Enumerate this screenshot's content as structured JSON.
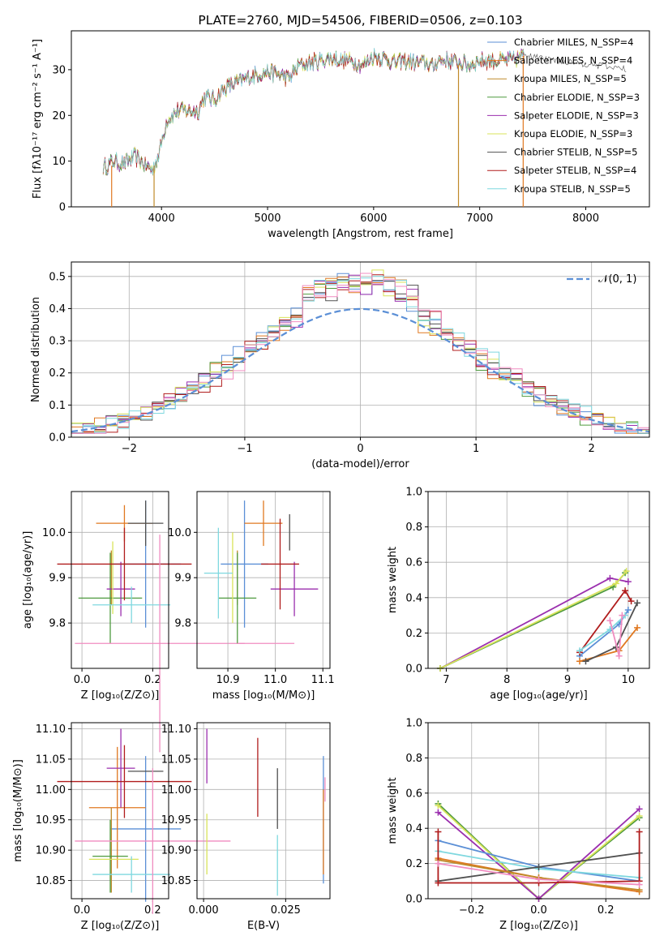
{
  "colors": {
    "blue": "#5b8fd6",
    "orange": "#e07820",
    "bronze": "#c08a2a",
    "green": "#4f9a3f",
    "purple": "#9b2fae",
    "yellow": "#d9e35a",
    "gray": "#505050",
    "red": "#b01c1c",
    "cyan": "#7fd8df",
    "pink": "#f08cc0",
    "lime": "#8cc63f",
    "normal_curve": "#5b8fd6"
  },
  "chart_data": [
    {
      "id": "spectrum",
      "type": "line",
      "title": "PLATE=2760, MJD=54506, FIBERID=0506, z=0.103",
      "xlabel": "wavelength [Angstrom, rest frame]",
      "ylabel": "Flux [fλ10⁻¹⁷ erg cm⁻² s⁻¹ A⁻¹]",
      "xlim": [
        3150,
        8600
      ],
      "ylim": [
        0,
        38.5
      ],
      "xticks": [
        "4000",
        "5000",
        "6000",
        "7000",
        "8000"
      ],
      "yticks": [
        "0",
        "10",
        "20",
        "30"
      ],
      "legend_position": "top-right",
      "legend": [
        {
          "label": "Chabrier MILES, N_SSP=4",
          "color": "blue"
        },
        {
          "label": "Salpeter MILES, N_SSP=4",
          "color": "orange"
        },
        {
          "label": "Kroupa MILES, N_SSP=5",
          "color": "bronze"
        },
        {
          "label": "Chabrier ELODIE, N_SSP=3",
          "color": "green"
        },
        {
          "label": "Salpeter ELODIE, N_SSP=3",
          "color": "purple"
        },
        {
          "label": "Kroupa ELODIE, N_SSP=3",
          "color": "yellow"
        },
        {
          "label": "Chabrier STELIB, N_SSP=5",
          "color": "gray"
        },
        {
          "label": "Salpeter STELIB, N_SSP=4",
          "color": "red"
        },
        {
          "label": "Kroupa STELIB, N_SSP=5",
          "color": "cyan"
        }
      ],
      "continuum": [
        [
          3450,
          8.5
        ],
        [
          3550,
          10
        ],
        [
          3650,
          9.5
        ],
        [
          3750,
          11
        ],
        [
          3850,
          9
        ],
        [
          3920,
          8
        ],
        [
          3980,
          12
        ],
        [
          4050,
          19
        ],
        [
          4150,
          21
        ],
        [
          4250,
          21
        ],
        [
          4350,
          21
        ],
        [
          4400,
          24
        ],
        [
          4500,
          23.5
        ],
        [
          4600,
          26
        ],
        [
          4700,
          27
        ],
        [
          4800,
          28
        ],
        [
          4900,
          29
        ],
        [
          5000,
          29.5
        ],
        [
          5100,
          29
        ],
        [
          5200,
          28
        ],
        [
          5300,
          31
        ],
        [
          5400,
          31.5
        ],
        [
          5500,
          32
        ],
        [
          5600,
          32.5
        ],
        [
          5700,
          32
        ],
        [
          5800,
          32
        ],
        [
          5900,
          31
        ],
        [
          6000,
          33
        ],
        [
          6100,
          32.5
        ],
        [
          6200,
          31.5
        ],
        [
          6300,
          32
        ],
        [
          6400,
          31.5
        ],
        [
          6500,
          31.5
        ],
        [
          6560,
          30.5
        ],
        [
          6600,
          32
        ],
        [
          6700,
          32
        ],
        [
          6800,
          31.5
        ],
        [
          6900,
          31
        ],
        [
          7000,
          32
        ],
        [
          7100,
          32
        ],
        [
          7200,
          32
        ],
        [
          7300,
          32
        ],
        [
          7420,
          33
        ]
      ],
      "gaps": [
        {
          "x": 3530,
          "from": "orange",
          "y_low": 0,
          "y_high": 9
        },
        {
          "x": 3930,
          "from": "bronze",
          "y_low": 0,
          "y_high": 9
        },
        {
          "x": 6800,
          "from": "bronze",
          "y_low": 0,
          "y_high": 31
        },
        {
          "x": 7410,
          "from": "orange",
          "y_low": 0,
          "y_high": 33
        }
      ]
    },
    {
      "id": "residuals",
      "type": "histogram",
      "xlabel": "(data-model)/error",
      "ylabel": "Normed distribution",
      "xlim": [
        -2.5,
        2.5
      ],
      "ylim": [
        0,
        0.545
      ],
      "xticks": [
        "−2",
        "−1",
        "0",
        "1",
        "2"
      ],
      "yticks": [
        "0.0",
        "0.1",
        "0.2",
        "0.3",
        "0.4",
        "0.5"
      ],
      "grid": true,
      "legend_position": "top-right",
      "legend_label": "𝒩(0, 1)",
      "bin_width": 0.1,
      "series_colors": [
        "blue",
        "orange",
        "green",
        "purple",
        "yellow",
        "gray",
        "red",
        "cyan",
        "pink"
      ]
    },
    {
      "id": "age_vs_Z",
      "type": "errorbar",
      "xlabel": "Z [log₁₀(Z/Z⊙)]",
      "ylabel": "age  [log₁₀(age/yr)]",
      "xlim": [
        -0.03,
        0.245
      ],
      "ylim": [
        9.7,
        10.09
      ],
      "xticks": [
        {
          "v": 0.0,
          "t": "0.0"
        },
        {
          "v": 0.2,
          "t": "0.2"
        }
      ],
      "yticks": [
        {
          "v": 9.8,
          "t": "9.8"
        },
        {
          "v": 9.9,
          "t": "9.9"
        },
        {
          "v": 10.0,
          "t": "10.0"
        }
      ],
      "grid": true,
      "points": [
        {
          "color": "blue",
          "x": 0.18,
          "xerr": 0.1,
          "y": 9.93,
          "yerr": 0.14
        },
        {
          "color": "orange",
          "x": 0.12,
          "xerr": 0.08,
          "y": 10.02,
          "yerr": 0.04
        },
        {
          "color": "bronze",
          "x": 0.083,
          "xerr": 0.0,
          "y": 9.9,
          "yerr": 0.06
        },
        {
          "color": "green",
          "x": 0.08,
          "xerr": 0.09,
          "y": 9.855,
          "yerr": 0.1
        },
        {
          "color": "purple",
          "x": 0.11,
          "xerr": 0.04,
          "y": 9.875,
          "yerr": 0.06
        },
        {
          "color": "yellow",
          "x": 0.087,
          "xerr": 0.0,
          "y": 9.9,
          "yerr": 0.08
        },
        {
          "color": "gray",
          "x": 0.18,
          "xerr": 0.05,
          "y": 10.02,
          "yerr": 0.05
        },
        {
          "color": "red",
          "x": 0.12,
          "xerr": 0.19,
          "y": 9.93,
          "yerr": 0.08
        },
        {
          "color": "cyan",
          "x": 0.14,
          "xerr": 0.11,
          "y": 9.84,
          "yerr": 0.04
        },
        {
          "color": "pink",
          "x": 0.22,
          "xerr": 0.24,
          "y": 9.755,
          "yerr": 0.24
        }
      ]
    },
    {
      "id": "age_vs_mass",
      "type": "errorbar",
      "xlabel": "mass [log₁₀(M/M⊙)]",
      "ylabel": "",
      "xlim": [
        10.835,
        11.115
      ],
      "ylim": [
        9.7,
        10.09
      ],
      "xticks": [
        {
          "v": 10.9,
          "t": "10.9"
        },
        {
          "v": 11.0,
          "t": "11.0"
        },
        {
          "v": 11.1,
          "t": "11.1"
        }
      ],
      "yticks": [
        {
          "v": 9.8,
          "t": "9.8"
        },
        {
          "v": 9.9,
          "t": "9.9"
        },
        {
          "v": 10.0,
          "t": "10.0"
        }
      ],
      "grid": true,
      "points": [
        {
          "color": "blue",
          "x": 10.935,
          "xerr": 0.05,
          "y": 9.93,
          "yerr": 0.14
        },
        {
          "color": "orange",
          "x": 10.975,
          "xerr": 0.04,
          "y": 10.02,
          "yerr": 0.05
        },
        {
          "color": "bronze",
          "x": 10.92,
          "xerr": 0.0,
          "y": 9.9,
          "yerr": 0.06
        },
        {
          "color": "green",
          "x": 10.92,
          "xerr": 0.04,
          "y": 9.855,
          "yerr": 0.1
        },
        {
          "color": "purple",
          "x": 11.04,
          "xerr": 0.05,
          "y": 9.875,
          "yerr": 0.06
        },
        {
          "color": "yellow",
          "x": 10.91,
          "xerr": 0.0,
          "y": 9.9,
          "yerr": 0.1
        },
        {
          "color": "gray",
          "x": 11.03,
          "xerr": 0.0,
          "y": 10.0,
          "yerr": 0.04
        },
        {
          "color": "red",
          "x": 11.01,
          "xerr": 0.04,
          "y": 9.93,
          "yerr": 0.1
        },
        {
          "color": "cyan",
          "x": 10.88,
          "xerr": 0.03,
          "y": 9.91,
          "yerr": 0.1
        },
        {
          "color": "pink",
          "x": 10.98,
          "xerr": 0.06,
          "y": 9.755,
          "yerr": 0.0
        }
      ]
    },
    {
      "id": "weight_vs_age",
      "type": "line",
      "xlabel": "age  [log₁₀(age/yr)]",
      "ylabel": "mass weight",
      "xlim": [
        6.7,
        10.35
      ],
      "ylim": [
        0,
        1.0
      ],
      "xticks": [
        {
          "v": 7,
          "t": "7"
        },
        {
          "v": 8,
          "t": "8"
        },
        {
          "v": 9,
          "t": "9"
        },
        {
          "v": 10,
          "t": "10"
        }
      ],
      "yticks": [
        {
          "v": 0,
          "t": "0.0"
        },
        {
          "v": 0.2,
          "t": "0.2"
        },
        {
          "v": 0.4,
          "t": "0.4"
        },
        {
          "v": 0.6,
          "t": "0.6"
        },
        {
          "v": 0.8,
          "t": "0.8"
        },
        {
          "v": 1.0,
          "t": "1.0"
        }
      ],
      "grid": true,
      "series": [
        {
          "color": "purple",
          "x": [
            6.9,
            9.7,
            10.0
          ],
          "y": [
            0.0,
            0.51,
            0.49
          ]
        },
        {
          "color": "green",
          "x": [
            6.9,
            9.75,
            9.95
          ],
          "y": [
            0.0,
            0.46,
            0.54
          ]
        },
        {
          "color": "yellow",
          "x": [
            6.9,
            9.8,
            9.97
          ],
          "y": [
            0.0,
            0.48,
            0.55
          ]
        },
        {
          "color": "blue",
          "x": [
            9.2,
            9.85,
            10.0
          ],
          "y": [
            0.07,
            0.25,
            0.33
          ]
        },
        {
          "color": "orange",
          "x": [
            9.2,
            9.85,
            10.15
          ],
          "y": [
            0.04,
            0.1,
            0.23
          ]
        },
        {
          "color": "gray",
          "x": [
            9.3,
            9.8,
            10.15
          ],
          "y": [
            0.04,
            0.12,
            0.37
          ]
        },
        {
          "color": "red",
          "x": [
            9.2,
            9.95,
            10.05
          ],
          "y": [
            0.09,
            0.44,
            0.38
          ]
        },
        {
          "color": "cyan",
          "x": [
            9.2,
            9.7,
            9.95
          ],
          "y": [
            0.1,
            0.22,
            0.3
          ]
        },
        {
          "color": "pink",
          "x": [
            9.7,
            9.85,
            9.9
          ],
          "y": [
            0.27,
            0.07,
            0.3
          ]
        }
      ]
    },
    {
      "id": "mass_vs_Z",
      "type": "errorbar",
      "xlabel": "Z [log₁₀(Z/Z⊙)]",
      "ylabel": "mass [log₁₀(M/M⊙)]",
      "xlim": [
        -0.03,
        0.245
      ],
      "ylim": [
        10.82,
        11.11
      ],
      "xticks": [
        {
          "v": 0.0,
          "t": "0.0"
        },
        {
          "v": 0.2,
          "t": "0.2"
        }
      ],
      "yticks": [
        {
          "v": 10.85,
          "t": "10.85"
        },
        {
          "v": 10.9,
          "t": "10.90"
        },
        {
          "v": 10.95,
          "t": "10.95"
        },
        {
          "v": 11.0,
          "t": "11.00"
        },
        {
          "v": 11.05,
          "t": "11.05"
        },
        {
          "v": 11.1,
          "t": "11.10"
        }
      ],
      "grid": true,
      "points": [
        {
          "color": "blue",
          "x": 0.18,
          "xerr": 0.1,
          "y": 10.935,
          "yerr": 0.12
        },
        {
          "color": "orange",
          "x": 0.1,
          "xerr": 0.08,
          "y": 10.97,
          "yerr": 0.1
        },
        {
          "color": "bronze",
          "x": 0.083,
          "xerr": 0.0,
          "y": 10.9,
          "yerr": 0.07
        },
        {
          "color": "green",
          "x": 0.08,
          "xerr": 0.05,
          "y": 10.89,
          "yerr": 0.06
        },
        {
          "color": "purple",
          "x": 0.11,
          "xerr": 0.04,
          "y": 11.035,
          "yerr": 0.065
        },
        {
          "color": "yellow",
          "x": 0.09,
          "xerr": 0.07,
          "y": 10.885,
          "yerr": 0.0
        },
        {
          "color": "gray",
          "x": 0.18,
          "xerr": 0.05,
          "y": 11.03,
          "yerr": 0.0
        },
        {
          "color": "red",
          "x": 0.12,
          "xerr": 0.19,
          "y": 11.013,
          "yerr": 0.06
        },
        {
          "color": "cyan",
          "x": 0.14,
          "xerr": 0.11,
          "y": 10.86,
          "yerr": 0.03
        },
        {
          "color": "pink",
          "x": 0.2,
          "xerr": 0.22,
          "y": 10.915,
          "yerr": 0.12
        }
      ]
    },
    {
      "id": "mass_vs_EBV",
      "type": "errorbar",
      "xlabel": "E(B-V)",
      "ylabel": "",
      "xlim": [
        -0.002,
        0.0385
      ],
      "ylim": [
        10.82,
        11.11
      ],
      "xticks": [
        {
          "v": 0.0,
          "t": "0.000"
        },
        {
          "v": 0.025,
          "t": "0.025"
        }
      ],
      "yticks": [
        {
          "v": 10.85,
          "t": "10.85"
        },
        {
          "v": 10.9,
          "t": "10.90"
        },
        {
          "v": 10.95,
          "t": "10.95"
        },
        {
          "v": 11.0,
          "t": "11.00"
        },
        {
          "v": 11.05,
          "t": "11.05"
        },
        {
          "v": 11.1,
          "t": "11.10"
        }
      ],
      "grid": true,
      "points": [
        {
          "color": "purple",
          "x": 0.001,
          "xerr": 0.0,
          "y": 11.055,
          "yerr": 0.045
        },
        {
          "color": "yellow",
          "x": 0.001,
          "xerr": 0.0,
          "y": 10.91,
          "yerr": 0.05
        },
        {
          "color": "red",
          "x": 0.0165,
          "xerr": 0.0,
          "y": 11.02,
          "yerr": 0.065
        },
        {
          "color": "gray",
          "x": 0.0225,
          "xerr": 0.0,
          "y": 10.985,
          "yerr": 0.05
        },
        {
          "color": "cyan",
          "x": 0.0225,
          "xerr": 0.0,
          "y": 10.875,
          "yerr": 0.05
        },
        {
          "color": "blue",
          "x": 0.0365,
          "xerr": 0.0,
          "y": 10.95,
          "yerr": 0.105
        },
        {
          "color": "orange",
          "x": 0.0365,
          "xerr": 0.0,
          "y": 10.93,
          "yerr": 0.07
        },
        {
          "color": "pink",
          "x": 0.037,
          "xerr": 0.0,
          "y": 11.0,
          "yerr": 0.02
        }
      ]
    },
    {
      "id": "weight_vs_Z",
      "type": "line",
      "xlabel": "Z [log₁₀(Z/Z⊙)]",
      "ylabel": "mass weight",
      "xlim": [
        -0.33,
        0.33
      ],
      "ylim": [
        0,
        1.0
      ],
      "xticks": [
        {
          "v": -0.2,
          "t": "−0.2"
        },
        {
          "v": 0.0,
          "t": "0.0"
        },
        {
          "v": 0.2,
          "t": "0.2"
        }
      ],
      "yticks": [
        {
          "v": 0,
          "t": "0.0"
        },
        {
          "v": 0.2,
          "t": "0.2"
        },
        {
          "v": 0.4,
          "t": "0.4"
        },
        {
          "v": 0.6,
          "t": "0.6"
        },
        {
          "v": 0.8,
          "t": "0.8"
        },
        {
          "v": 1.0,
          "t": "1.0"
        }
      ],
      "grid": true,
      "series": [
        {
          "color": "green",
          "x": [
            -0.3,
            0.0,
            0.3
          ],
          "y": [
            0.54,
            0.0,
            0.46
          ]
        },
        {
          "color": "yellow",
          "x": [
            -0.3,
            0.0,
            0.3
          ],
          "y": [
            0.53,
            0.0,
            0.47
          ]
        },
        {
          "color": "purple",
          "x": [
            -0.3,
            0.0,
            0.3
          ],
          "y": [
            0.49,
            0.0,
            0.51
          ]
        },
        {
          "color": "blue",
          "x": [
            -0.3,
            0.0,
            0.3
          ],
          "y": [
            0.33,
            0.18,
            0.1
          ]
        },
        {
          "color": "cyan",
          "x": [
            -0.3,
            0.0,
            0.3
          ],
          "y": [
            0.27,
            0.17,
            0.12
          ]
        },
        {
          "color": "gray",
          "x": [
            -0.3,
            0.0,
            0.3
          ],
          "y": [
            0.1,
            0.18,
            0.26
          ]
        },
        {
          "color": "orange",
          "x": [
            -0.3,
            0.0,
            0.3
          ],
          "y": [
            0.23,
            0.12,
            0.04
          ]
        },
        {
          "color": "bronze",
          "x": [
            -0.3,
            0.0,
            0.3
          ],
          "y": [
            0.22,
            0.12,
            0.05
          ]
        },
        {
          "color": "red",
          "x": [
            -0.3,
            -0.3,
            0.0,
            0.3,
            0.3
          ],
          "y": [
            0.38,
            0.09,
            0.09,
            0.1,
            0.38
          ]
        },
        {
          "color": "pink",
          "x": [
            -0.3,
            0.0,
            0.3
          ],
          "y": [
            0.2,
            0.11,
            0.08
          ]
        }
      ]
    }
  ]
}
